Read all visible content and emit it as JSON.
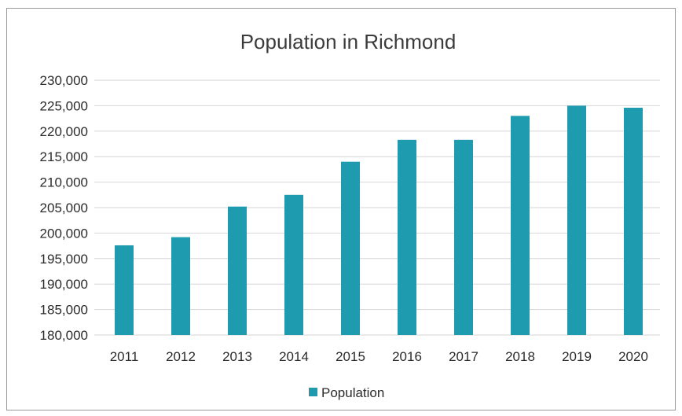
{
  "chart_data": {
    "type": "bar",
    "title": "Population in Richmond",
    "categories": [
      "2011",
      "2012",
      "2013",
      "2014",
      "2015",
      "2016",
      "2017",
      "2018",
      "2019",
      "2020"
    ],
    "series": [
      {
        "name": "Population",
        "values": [
          197600,
          199200,
          205200,
          207500,
          214000,
          218300,
          218300,
          223000,
          225000,
          224600
        ]
      }
    ],
    "ylim": [
      180000,
      230000
    ],
    "yticks": [
      "180,000",
      "185,000",
      "190,000",
      "195,000",
      "200,000",
      "205,000",
      "210,000",
      "215,000",
      "220,000",
      "225,000",
      "230,000"
    ],
    "grid": true,
    "legend_position": "bottom",
    "bar_color": "#1f9bb0"
  }
}
